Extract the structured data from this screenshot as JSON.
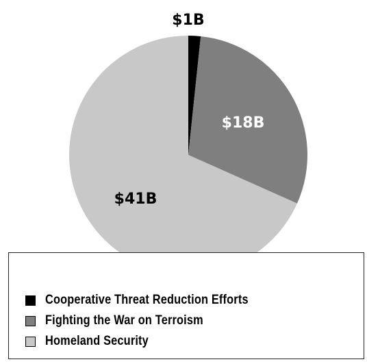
{
  "chart_data": {
    "type": "pie",
    "title": "",
    "slices": [
      {
        "label": "Cooperative Threat Reduction Efforts",
        "value": 1,
        "display": "$1B",
        "color": "#000000",
        "label_color": "#000000"
      },
      {
        "label": "Fighting the War on Terroism",
        "value": 18,
        "display": "$18B",
        "color": "#7f7f7f",
        "label_color": "#ffffff"
      },
      {
        "label": "Homeland Security",
        "value": 41,
        "display": "$41B",
        "color": "#c8c8c8",
        "label_color": "#000000"
      }
    ],
    "start_angle_deg": 0,
    "direction": "clockwise",
    "legend_position": "bottom"
  }
}
